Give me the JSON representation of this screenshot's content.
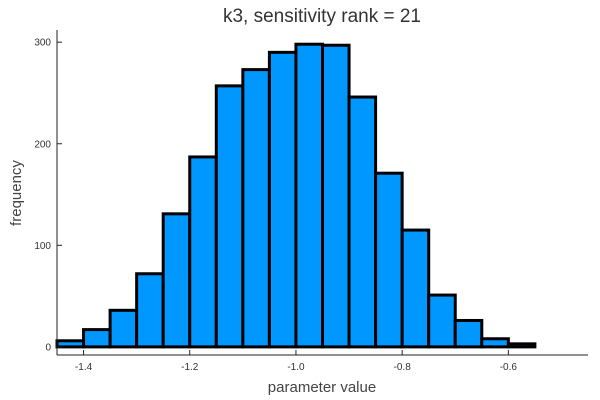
{
  "chart_data": {
    "type": "bar",
    "title": "k3, sensitivity rank = 21",
    "xlabel": "parameter value",
    "ylabel": "frequency",
    "xlim": [
      -1.45,
      -0.45
    ],
    "ylim": [
      -8,
      312
    ],
    "xticks": [
      -1.4,
      -1.2,
      -1.0,
      -0.8,
      -0.6
    ],
    "xtick_labels": [
      "-1.4",
      "-1.2",
      "-1.0",
      "-0.8",
      "-0.6"
    ],
    "yticks": [
      0,
      100,
      200,
      300
    ],
    "ytick_labels": [
      "0",
      "100",
      "200",
      "300"
    ],
    "bin_width": 0.05,
    "bin_starts": [
      -1.45,
      -1.4,
      -1.35,
      -1.3,
      -1.25,
      -1.2,
      -1.15,
      -1.1,
      -1.05,
      -1.0,
      -0.95,
      -0.9,
      -0.85,
      -0.8,
      -0.75,
      -0.7,
      -0.65,
      -0.6,
      -0.55
    ],
    "values": [
      6,
      17,
      36,
      72,
      131,
      187,
      257,
      273,
      290,
      298,
      297,
      246,
      171,
      115,
      51,
      26,
      8,
      3,
      0
    ],
    "bar_color": "#0097ff",
    "edge_color": "#000000",
    "grid": false,
    "legend": "none"
  }
}
